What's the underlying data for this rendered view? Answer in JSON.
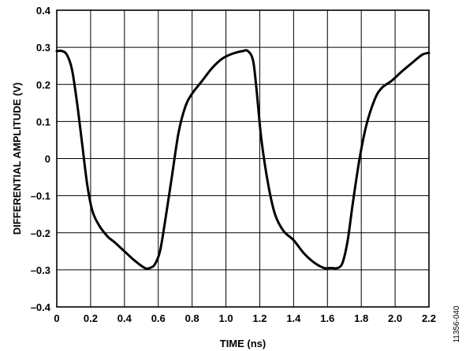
{
  "chart_data": {
    "type": "line",
    "xlabel": "TIME (ns)",
    "ylabel": "DIFFERENTIAL AMPLITUDE (V)",
    "xlim": [
      0,
      2.2
    ],
    "ylim": [
      -0.4,
      0.4
    ],
    "grid": true,
    "legend": "none",
    "x_ticks": [
      0,
      0.2,
      0.4,
      0.6,
      0.8,
      1.0,
      1.2,
      1.4,
      1.6,
      1.8,
      2.0,
      2.2
    ],
    "x_tick_labels": [
      "0",
      "0.2",
      "0.4",
      "0.6",
      "0.8",
      "1.0",
      "1.2",
      "1.4",
      "1.6",
      "1.8",
      "2.0",
      "2.2"
    ],
    "y_ticks": [
      0.4,
      0.3,
      0.2,
      0.1,
      0,
      -0.1,
      -0.2,
      -0.3,
      -0.4
    ],
    "y_tick_labels": [
      "0.4",
      "0.3",
      "0.2",
      "0.1",
      "0",
      "–0.1",
      "–0.2",
      "–0.3",
      "–0.4"
    ],
    "line_color": "#000000",
    "series": [
      {
        "x": [
          0,
          0.03,
          0.06,
          0.09,
          0.12,
          0.15,
          0.18,
          0.21,
          0.25,
          0.3,
          0.34,
          0.4,
          0.46,
          0.52,
          0.55,
          0.58,
          0.61,
          0.64,
          0.68,
          0.72,
          0.76,
          0.8,
          0.86,
          0.92,
          0.98,
          1.04,
          1.1,
          1.13,
          1.16,
          1.18,
          1.21,
          1.25,
          1.29,
          1.34,
          1.4,
          1.46,
          1.52,
          1.58,
          1.62,
          1.66,
          1.69,
          1.72,
          1.75,
          1.79,
          1.83,
          1.88,
          1.92,
          1.98,
          2.04,
          2.1,
          2.16,
          2.2
        ],
        "y": [
          0.29,
          0.29,
          0.28,
          0.24,
          0.15,
          0.04,
          -0.07,
          -0.14,
          -0.18,
          -0.21,
          -0.225,
          -0.25,
          -0.275,
          -0.295,
          -0.295,
          -0.285,
          -0.25,
          -0.17,
          -0.05,
          0.07,
          0.14,
          0.175,
          0.21,
          0.245,
          0.27,
          0.283,
          0.29,
          0.29,
          0.265,
          0.19,
          0.05,
          -0.07,
          -0.15,
          -0.195,
          -0.22,
          -0.255,
          -0.28,
          -0.295,
          -0.295,
          -0.295,
          -0.28,
          -0.22,
          -0.12,
          0.0,
          0.09,
          0.16,
          0.19,
          0.21,
          0.235,
          0.258,
          0.28,
          0.285
        ]
      }
    ]
  },
  "figure_id": "11356-040"
}
